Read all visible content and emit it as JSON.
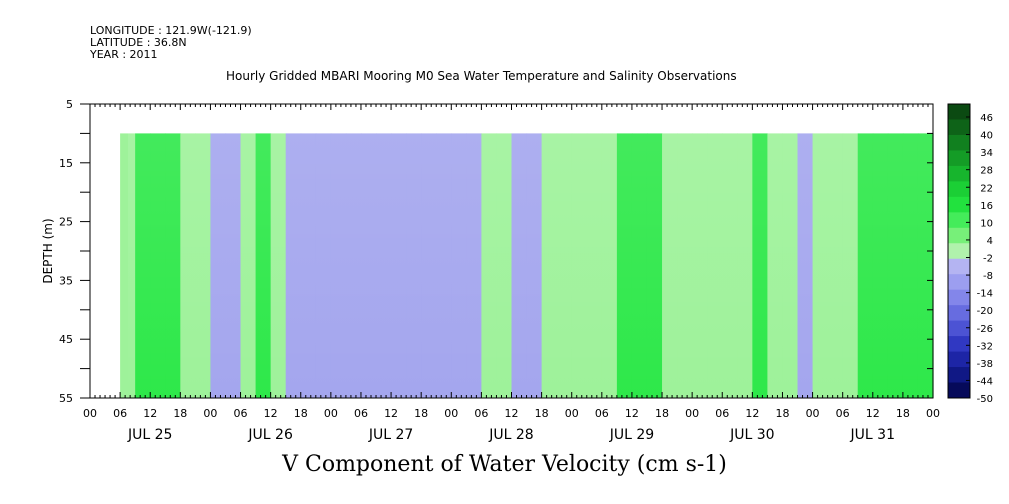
{
  "header": {
    "longitude": "LONGITUDE : 121.9W(-121.9)",
    "latitude": "LATITUDE : 36.8N",
    "year": "YEAR : 2011"
  },
  "colors": {
    "negative_fill": "#a4a6ee",
    "positive_fill": "#9ef29a",
    "strong_positive_fill": "#2ee84a",
    "background": "#ffffff"
  },
  "chart_data": {
    "type": "heatmap",
    "title": "Hourly Gridded MBARI Mooring M0 Sea Water Temperature and Salinity Observations",
    "xlabel": "V Component of Water Velocity (cm s-1)",
    "ylabel": "DEPTH (m)",
    "ylim": [
      5,
      55
    ],
    "y_inverted": true,
    "y_ticks": [
      "5",
      "15",
      "25",
      "35",
      "45",
      "55"
    ],
    "x_hour_ticks": [
      "00",
      "06",
      "12",
      "18",
      "00",
      "06",
      "12",
      "18",
      "00",
      "06",
      "12",
      "18",
      "00",
      "06",
      "12",
      "18",
      "00",
      "06",
      "12",
      "18",
      "00",
      "06",
      "12",
      "18",
      "00",
      "06",
      "12",
      "18",
      "00"
    ],
    "x_day_labels": [
      "JUL 25",
      "JUL 26",
      "JUL 27",
      "JUL 28",
      "JUL 29",
      "JUL 30",
      "JUL 31"
    ],
    "data_depth_range_m": [
      10,
      55
    ],
    "data_start": "JUL 25 06",
    "colorbar_levels": [
      "46",
      "40",
      "34",
      "28",
      "22",
      "16",
      "10",
      "4",
      "-2",
      "-8",
      "-14",
      "-20",
      "-26",
      "-32",
      "-38",
      "-44",
      "-50"
    ],
    "colorbar_colors": [
      "#0b4a12",
      "#0e6318",
      "#11801f",
      "#149c26",
      "#17b52d",
      "#1bcf35",
      "#22e23e",
      "#44ec5a",
      "#77f079",
      "#b0f2ac",
      "#b4b4f2",
      "#9c9ef0",
      "#8386ea",
      "#676ce0",
      "#4c53d4",
      "#3038c2",
      "#1d25a6",
      "#101885",
      "#060a5a"
    ],
    "v_series": {
      "x_hour": [
        6,
        9,
        12,
        15,
        18,
        21,
        24,
        27,
        30,
        33,
        36,
        39,
        42,
        45,
        48,
        51,
        54,
        57,
        60,
        63,
        66,
        69,
        72,
        75,
        78,
        81,
        84,
        87,
        90,
        93,
        96,
        99,
        102,
        105,
        108,
        111,
        114,
        117,
        120,
        123,
        126,
        129,
        132,
        135,
        138,
        141,
        144,
        147,
        150,
        153,
        156,
        159,
        162,
        165
      ],
      "values": [
        4,
        8,
        10,
        9,
        6,
        4,
        -3,
        -2,
        5,
        9,
        6,
        -2,
        -4,
        -5,
        -3,
        -6,
        -5,
        -2,
        -5,
        -6,
        -4,
        -6,
        -3,
        -4,
        2,
        3,
        -3,
        -2,
        3,
        5,
        4,
        3,
        6,
        8,
        9,
        8,
        6,
        4,
        2,
        3,
        2,
        6,
        8,
        7,
        3,
        -1,
        1,
        4,
        6,
        8,
        10,
        12,
        11,
        9
      ]
    }
  }
}
